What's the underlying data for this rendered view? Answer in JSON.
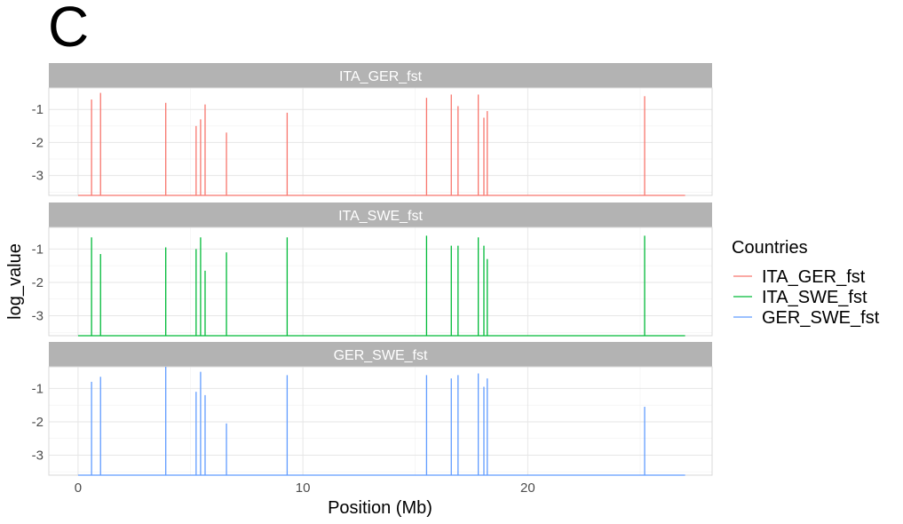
{
  "panel_tag": "C",
  "chart_data": {
    "type": "line",
    "x_label": "Position (Mb)",
    "y_label": "log_value",
    "x_ticks": [
      0,
      10,
      20
    ],
    "y_ticks": [
      -1,
      -2,
      -3
    ],
    "xlim": [
      -1.3,
      28.2
    ],
    "ylim": [
      -3.6,
      -0.35
    ],
    "baseline": -3.6,
    "x_end": 27,
    "legend": {
      "title": "Countries",
      "position": "right",
      "entries": [
        "ITA_GER_fst",
        "ITA_SWE_fst",
        "GER_SWE_fst"
      ]
    },
    "series": [
      {
        "name": "ITA_GER_fst",
        "color": "#F8766D",
        "spikes": [
          {
            "x": 0.6,
            "y": -0.7
          },
          {
            "x": 1.0,
            "y": -0.5
          },
          {
            "x": 3.9,
            "y": -0.8
          },
          {
            "x": 5.25,
            "y": -1.5
          },
          {
            "x": 5.45,
            "y": -1.3
          },
          {
            "x": 5.65,
            "y": -0.85
          },
          {
            "x": 6.6,
            "y": -1.7
          },
          {
            "x": 9.3,
            "y": -1.1
          },
          {
            "x": 15.5,
            "y": -0.65
          },
          {
            "x": 16.6,
            "y": -0.55
          },
          {
            "x": 16.9,
            "y": -0.9
          },
          {
            "x": 17.8,
            "y": -0.55
          },
          {
            "x": 18.05,
            "y": -1.25
          },
          {
            "x": 18.2,
            "y": -1.05
          },
          {
            "x": 25.2,
            "y": -0.6
          }
        ]
      },
      {
        "name": "ITA_SWE_fst",
        "color": "#00BA38",
        "spikes": [
          {
            "x": 0.6,
            "y": -0.65
          },
          {
            "x": 1.0,
            "y": -1.15
          },
          {
            "x": 3.9,
            "y": -0.95
          },
          {
            "x": 5.25,
            "y": -1.0
          },
          {
            "x": 5.45,
            "y": -0.65
          },
          {
            "x": 5.65,
            "y": -1.65
          },
          {
            "x": 6.6,
            "y": -1.1
          },
          {
            "x": 9.3,
            "y": -0.65
          },
          {
            "x": 15.5,
            "y": -0.6
          },
          {
            "x": 16.6,
            "y": -0.9
          },
          {
            "x": 16.9,
            "y": -0.9
          },
          {
            "x": 17.8,
            "y": -0.65
          },
          {
            "x": 18.05,
            "y": -0.9
          },
          {
            "x": 18.2,
            "y": -1.3
          },
          {
            "x": 25.2,
            "y": -0.6
          }
        ]
      },
      {
        "name": "GER_SWE_fst",
        "color": "#619CFF",
        "spikes": [
          {
            "x": 0.6,
            "y": -0.8
          },
          {
            "x": 1.0,
            "y": -0.65
          },
          {
            "x": 3.9,
            "y": -0.35
          },
          {
            "x": 5.25,
            "y": -1.1
          },
          {
            "x": 5.45,
            "y": -0.5
          },
          {
            "x": 5.65,
            "y": -1.2
          },
          {
            "x": 6.6,
            "y": -2.05
          },
          {
            "x": 9.3,
            "y": -0.6
          },
          {
            "x": 15.5,
            "y": -0.6
          },
          {
            "x": 16.6,
            "y": -0.7
          },
          {
            "x": 16.9,
            "y": -0.6
          },
          {
            "x": 17.8,
            "y": -0.55
          },
          {
            "x": 18.05,
            "y": -0.95
          },
          {
            "x": 18.2,
            "y": -0.7
          },
          {
            "x": 25.2,
            "y": -1.55
          }
        ]
      }
    ]
  }
}
